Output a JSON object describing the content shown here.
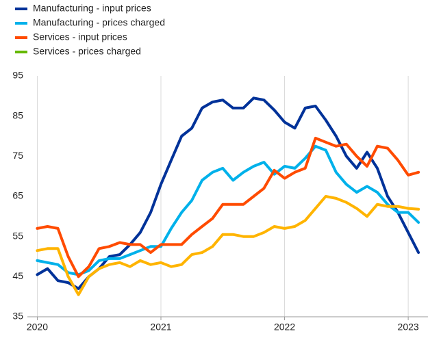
{
  "chart_data": {
    "type": "line",
    "x": [
      2020,
      2020.083,
      2020.167,
      2020.25,
      2020.333,
      2020.417,
      2020.5,
      2020.583,
      2020.667,
      2020.75,
      2020.833,
      2020.917,
      2021,
      2021.083,
      2021.167,
      2021.25,
      2021.333,
      2021.417,
      2021.5,
      2021.583,
      2021.667,
      2021.75,
      2021.833,
      2021.917,
      2022,
      2022.083,
      2022.167,
      2022.25,
      2022.333,
      2022.417,
      2022.5,
      2022.583,
      2022.667,
      2022.75,
      2022.833,
      2022.917,
      2023,
      2023.083
    ],
    "series": [
      {
        "name": "Manufacturing - input prices",
        "color": "#003299",
        "legend_color": "#003299",
        "values": [
          45.5,
          47,
          44,
          43.5,
          42,
          45,
          47,
          50,
          50.5,
          53,
          56,
          61,
          68,
          74,
          80,
          82,
          87,
          88.5,
          89,
          87,
          87,
          89.5,
          89,
          86.5,
          83.5,
          82,
          87,
          87.5,
          84,
          80,
          75,
          72,
          76,
          72,
          65,
          61,
          56,
          51
        ]
      },
      {
        "name": "Manufacturing - prices charged",
        "color": "#00b1ea",
        "legend_color": "#00b1ea",
        "values": [
          49,
          48.5,
          48,
          46,
          45.5,
          46.5,
          49,
          49.5,
          49.5,
          50.5,
          51.5,
          52.5,
          52.5,
          57,
          61,
          64,
          69,
          71,
          72,
          69,
          71,
          72.5,
          73.5,
          70.5,
          72.5,
          72,
          74.5,
          77.5,
          76.5,
          71,
          68,
          66,
          67.5,
          66,
          63,
          61,
          61,
          58.5
        ]
      },
      {
        "name": "Services - input prices",
        "color": "#ff4b00",
        "legend_color": "#ff4b00",
        "values": [
          57,
          57.5,
          57,
          50,
          45,
          47.5,
          52,
          52.5,
          53.5,
          53,
          53,
          51,
          53,
          53,
          53,
          55.5,
          57.5,
          59.5,
          63,
          63,
          63,
          65,
          67,
          71.5,
          69.5,
          71,
          72,
          79.5,
          78.5,
          77.5,
          78,
          75,
          72.5,
          77.5,
          77,
          74,
          70.3,
          71
        ]
      },
      {
        "name": "Services - prices charged",
        "color": "#ffb400",
        "legend_color": "#65b800",
        "values": [
          51.5,
          52,
          52,
          45,
          40.5,
          45,
          47,
          48,
          48.5,
          47.5,
          49,
          48,
          48.5,
          47.5,
          48,
          50.5,
          51,
          52.5,
          55.5,
          55.5,
          55,
          55,
          56,
          57.5,
          57,
          57.5,
          59,
          62,
          65,
          64.5,
          63.5,
          62,
          60,
          63,
          62.5,
          62.5,
          62,
          61.8
        ]
      }
    ],
    "xlim": [
      2019.92,
      2023.16
    ],
    "xticks": [
      2020,
      2021,
      2022,
      2023
    ],
    "ylim": [
      35,
      95
    ],
    "yticks": [
      35,
      45,
      55,
      65,
      75,
      85,
      95
    ],
    "grid": "x"
  }
}
